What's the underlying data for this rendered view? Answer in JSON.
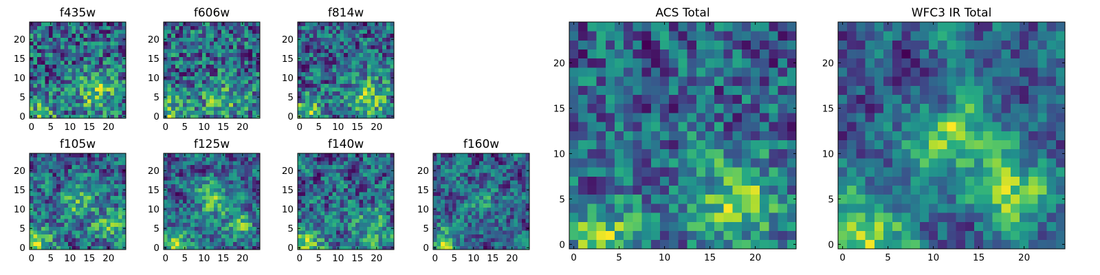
{
  "chart_data": [
    {
      "type": "heatmap",
      "title": "f435w",
      "grid_size": 25,
      "xlim": [
        0,
        24
      ],
      "ylim": [
        0,
        24
      ],
      "xticks": [
        0,
        5,
        10,
        15,
        20
      ],
      "yticks": [
        0,
        5,
        10,
        15,
        20
      ],
      "colormap": "viridis",
      "seed": 11,
      "noise_weight": 0.85,
      "hotspots": [
        [
          17,
          6,
          4,
          0.5
        ],
        [
          3,
          1,
          3,
          0.4
        ]
      ]
    },
    {
      "type": "heatmap",
      "title": "f606w",
      "grid_size": 25,
      "xlim": [
        0,
        24
      ],
      "ylim": [
        0,
        24
      ],
      "xticks": [
        0,
        5,
        10,
        15,
        20
      ],
      "yticks": [
        0,
        5,
        10,
        15,
        20
      ],
      "colormap": "viridis",
      "seed": 23,
      "noise_weight": 0.85,
      "hotspots": [
        [
          2,
          1,
          3,
          0.45
        ],
        [
          15,
          4,
          4,
          0.35
        ]
      ]
    },
    {
      "type": "heatmap",
      "title": "f814w",
      "grid_size": 25,
      "xlim": [
        0,
        24
      ],
      "ylim": [
        0,
        24
      ],
      "xticks": [
        0,
        5,
        10,
        15,
        20
      ],
      "yticks": [
        0,
        5,
        10,
        15,
        20
      ],
      "colormap": "viridis",
      "seed": 37,
      "noise_weight": 0.8,
      "hotspots": [
        [
          2,
          1,
          3,
          0.55
        ],
        [
          18,
          5,
          4,
          0.5
        ]
      ]
    },
    {
      "type": "heatmap",
      "title": "f105w",
      "grid_size": 25,
      "xlim": [
        0,
        24
      ],
      "ylim": [
        0,
        24
      ],
      "xticks": [
        0,
        5,
        10,
        15,
        20
      ],
      "yticks": [
        0,
        5,
        10,
        15,
        20
      ],
      "colormap": "viridis",
      "seed": 41,
      "noise_weight": 0.6,
      "hotspots": [
        [
          2,
          1,
          3,
          0.5
        ],
        [
          12,
          12,
          3,
          0.4
        ],
        [
          20,
          6,
          3,
          0.35
        ]
      ]
    },
    {
      "type": "heatmap",
      "title": "f125w",
      "grid_size": 25,
      "xlim": [
        0,
        24
      ],
      "ylim": [
        0,
        24
      ],
      "xticks": [
        0,
        5,
        10,
        15,
        20
      ],
      "yticks": [
        0,
        5,
        10,
        15,
        20
      ],
      "colormap": "viridis",
      "seed": 53,
      "noise_weight": 0.6,
      "hotspots": [
        [
          2,
          1,
          3,
          0.5
        ],
        [
          12,
          13,
          3,
          0.45
        ],
        [
          19,
          6,
          3,
          0.35
        ]
      ]
    },
    {
      "type": "heatmap",
      "title": "f140w",
      "grid_size": 25,
      "xlim": [
        0,
        24
      ],
      "ylim": [
        0,
        24
      ],
      "xticks": [
        0,
        5,
        10,
        15,
        20
      ],
      "yticks": [
        0,
        5,
        10,
        15,
        20
      ],
      "colormap": "viridis",
      "seed": 67,
      "noise_weight": 0.6,
      "hotspots": [
        [
          2,
          1,
          3,
          0.5
        ],
        [
          19,
          5,
          3,
          0.45
        ]
      ]
    },
    {
      "type": "heatmap",
      "title": "f160w",
      "grid_size": 25,
      "xlim": [
        0,
        24
      ],
      "ylim": [
        0,
        24
      ],
      "xticks": [
        0,
        5,
        10,
        15,
        20
      ],
      "yticks": [
        0,
        5,
        10,
        15,
        20
      ],
      "colormap": "viridis",
      "seed": 79,
      "noise_weight": 0.6,
      "hotspots": [
        [
          2,
          1,
          3,
          0.55
        ],
        [
          12,
          12,
          3,
          0.3
        ]
      ]
    },
    {
      "type": "heatmap",
      "title": "ACS Total",
      "grid_size": 25,
      "xlim": [
        0,
        24
      ],
      "ylim": [
        0,
        24
      ],
      "xticks": [
        0,
        5,
        10,
        15,
        20
      ],
      "yticks": [
        0,
        5,
        10,
        15,
        20
      ],
      "colormap": "viridis",
      "seed": 97,
      "noise_weight": 0.7,
      "hotspots": [
        [
          3,
          1,
          3,
          0.55
        ],
        [
          18,
          5,
          4,
          0.55
        ]
      ]
    },
    {
      "type": "heatmap",
      "title": "WFC3 IR Total",
      "grid_size": 25,
      "xlim": [
        0,
        24
      ],
      "ylim": [
        0,
        24
      ],
      "xticks": [
        0,
        5,
        10,
        15,
        20
      ],
      "yticks": [
        0,
        5,
        10,
        15,
        20
      ],
      "colormap": "viridis",
      "seed": 103,
      "noise_weight": 0.45,
      "hotspots": [
        [
          3,
          1,
          3,
          0.65
        ],
        [
          12,
          12,
          3,
          0.55
        ],
        [
          19,
          6,
          3,
          0.45
        ]
      ]
    }
  ]
}
